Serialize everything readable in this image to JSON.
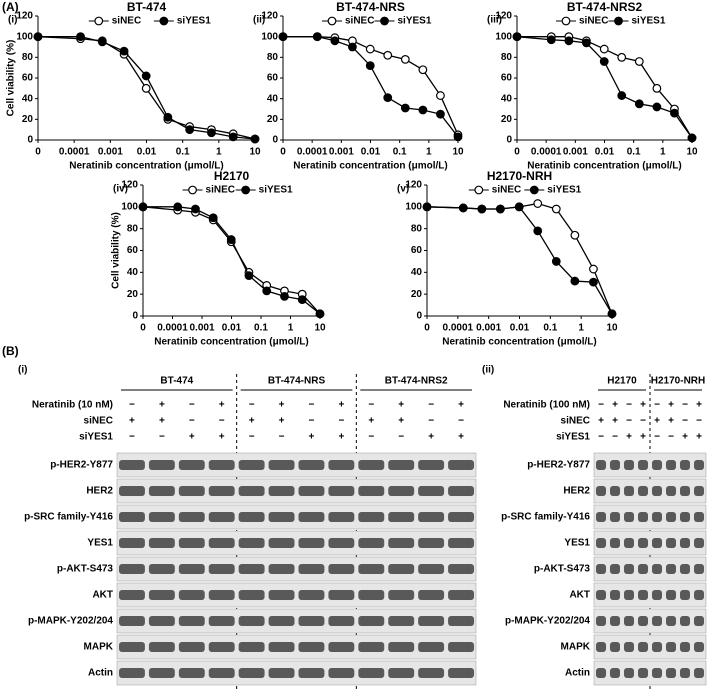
{
  "figure_labels": {
    "a": "(A)",
    "b": "(B)"
  },
  "chart_data": [
    {
      "type": "line",
      "panel": "(i)",
      "title": "BT-474",
      "ylabel": "Cell viability (%)",
      "xlabel": "Neratinib concentration (μmol/L)",
      "x": [
        0,
        0.00015,
        0.0006,
        0.0024,
        0.0098,
        0.039,
        0.156,
        0.625,
        2.5,
        10
      ],
      "xscale": "log",
      "xlim": [
        0,
        10
      ],
      "xticks": [
        0,
        0.0001,
        0.001,
        0.01,
        0.1,
        1,
        10
      ],
      "ylim": [
        0,
        120
      ],
      "yticks": [
        0,
        20,
        40,
        60,
        80,
        100,
        120
      ],
      "legend": "top",
      "series": [
        {
          "name": "siNEC",
          "color": "#000000",
          "marker": "open",
          "values": [
            100,
            98,
            96,
            83,
            50,
            20,
            13,
            10,
            6,
            1
          ]
        },
        {
          "name": "siYES1",
          "color": "#000000",
          "marker": "filled",
          "values": [
            100,
            100,
            95,
            86,
            62,
            22,
            10,
            7,
            3,
            1
          ]
        }
      ]
    },
    {
      "type": "line",
      "panel": "(ii)",
      "title": "BT-474-NRS",
      "xlabel": "Neratinib concentration (μmol/L)",
      "x": [
        0,
        0.00015,
        0.0006,
        0.0024,
        0.0098,
        0.039,
        0.156,
        0.625,
        2.5,
        10
      ],
      "xscale": "log",
      "xlim": [
        0,
        10
      ],
      "xticks": [
        0,
        0.0001,
        0.001,
        0.01,
        0.1,
        1,
        10
      ],
      "ylim": [
        0,
        120
      ],
      "yticks": [
        0,
        20,
        40,
        60,
        80,
        100,
        120
      ],
      "legend": "top",
      "series": [
        {
          "name": "siNEC",
          "color": "#000000",
          "marker": "open",
          "values": [
            100,
            100,
            99,
            96,
            88,
            82,
            78,
            68,
            43,
            5
          ]
        },
        {
          "name": "siYES1",
          "color": "#000000",
          "marker": "filled",
          "values": [
            100,
            100,
            96,
            90,
            72,
            41,
            31,
            29,
            25,
            3
          ]
        }
      ]
    },
    {
      "type": "line",
      "panel": "(iii)",
      "title": "BT-474-NRS2",
      "xlabel": "Neratinib concentration (μmol/L)",
      "x": [
        0,
        0.00015,
        0.0006,
        0.0024,
        0.0098,
        0.039,
        0.156,
        0.625,
        2.5,
        10
      ],
      "xscale": "log",
      "xlim": [
        0,
        10
      ],
      "xticks": [
        0,
        0.0001,
        0.001,
        0.01,
        0.1,
        1,
        10
      ],
      "ylim": [
        0,
        120
      ],
      "yticks": [
        0,
        20,
        40,
        60,
        80,
        100,
        120
      ],
      "legend": "top",
      "series": [
        {
          "name": "siNEC",
          "color": "#000000",
          "marker": "open",
          "values": [
            100,
            100,
            100,
            96,
            88,
            80,
            76,
            50,
            30,
            2
          ]
        },
        {
          "name": "siYES1",
          "color": "#000000",
          "marker": "filled",
          "values": [
            100,
            97,
            96,
            94,
            76,
            43,
            35,
            32,
            26,
            2
          ]
        }
      ]
    },
    {
      "type": "line",
      "panel": "(iv)",
      "title": "H2170",
      "ylabel": "Cell viability (%)",
      "xlabel": "Neratinib concentration (μmol/L)",
      "x": [
        0,
        0.00015,
        0.0006,
        0.0024,
        0.0098,
        0.039,
        0.156,
        0.625,
        2.5,
        10
      ],
      "xscale": "log",
      "xlim": [
        0,
        10
      ],
      "xticks": [
        0,
        0.0001,
        0.001,
        0.01,
        0.1,
        1,
        10
      ],
      "ylim": [
        0,
        120
      ],
      "yticks": [
        0,
        20,
        40,
        60,
        80,
        100,
        120
      ],
      "legend": "top",
      "series": [
        {
          "name": "siNEC",
          "color": "#000000",
          "marker": "open",
          "values": [
            100,
            97,
            95,
            88,
            68,
            40,
            28,
            23,
            20,
            2
          ]
        },
        {
          "name": "siYES1",
          "color": "#000000",
          "marker": "filled",
          "values": [
            100,
            100,
            98,
            90,
            70,
            37,
            23,
            18,
            15,
            2
          ]
        }
      ]
    },
    {
      "type": "line",
      "panel": "(v)",
      "title": "H2170-NRH",
      "xlabel": "Neratinib concentration (μmol/L)",
      "x": [
        0,
        0.00015,
        0.0006,
        0.0024,
        0.0098,
        0.039,
        0.156,
        0.625,
        2.5,
        10
      ],
      "xscale": "log",
      "xlim": [
        0,
        10
      ],
      "xticks": [
        0,
        0.0001,
        0.001,
        0.01,
        0.1,
        1,
        10
      ],
      "ylim": [
        0,
        120
      ],
      "yticks": [
        0,
        20,
        40,
        60,
        80,
        100,
        120
      ],
      "legend": "top",
      "series": [
        {
          "name": "siNEC",
          "color": "#000000",
          "marker": "open",
          "values": [
            100,
            99,
            98,
            98,
            100,
            103,
            98,
            74,
            43,
            2
          ]
        },
        {
          "name": "siYES1",
          "color": "#000000",
          "marker": "filled",
          "values": [
            100,
            99,
            98,
            98,
            100,
            78,
            50,
            32,
            31,
            2
          ]
        }
      ]
    }
  ],
  "blots": [
    {
      "panel": "(i)",
      "groups": [
        "BT-474",
        "BT-474-NRS",
        "BT-474-NRS2"
      ],
      "conditions": [
        {
          "name": "Neratinib (10 nM)",
          "signs": [
            "−",
            "+",
            "−",
            "+",
            "−",
            "+",
            "−",
            "+",
            "−",
            "+",
            "−",
            "+"
          ]
        },
        {
          "name": "siNEC",
          "signs": [
            "+",
            "+",
            "−",
            "−",
            "+",
            "+",
            "−",
            "−",
            "+",
            "+",
            "−",
            "−"
          ]
        },
        {
          "name": "siYES1",
          "signs": [
            "−",
            "−",
            "+",
            "+",
            "−",
            "−",
            "+",
            "+",
            "−",
            "−",
            "+",
            "+"
          ]
        }
      ],
      "rows": [
        "p-HER2-Y877",
        "HER2",
        "p-SRC family-Y416",
        "YES1",
        "p-AKT-S473",
        "AKT",
        "p-MAPK-Y202/204",
        "MAPK",
        "Actin"
      ]
    },
    {
      "panel": "(ii)",
      "groups": [
        "H2170",
        "H2170-NRH"
      ],
      "conditions": [
        {
          "name": "Neratinib (100 nM)",
          "signs": [
            "−",
            "+",
            "−",
            "+",
            "−",
            "+",
            "−",
            "+"
          ]
        },
        {
          "name": "siNEC",
          "signs": [
            "+",
            "+",
            "−",
            "−",
            "+",
            "+",
            "−",
            "−"
          ]
        },
        {
          "name": "siYES1",
          "signs": [
            "−",
            "−",
            "+",
            "+",
            "−",
            "−",
            "+",
            "+"
          ]
        }
      ],
      "rows": [
        "p-HER2-Y877",
        "HER2",
        "p-SRC family-Y416",
        "YES1",
        "p-AKT-S473",
        "AKT",
        "p-MAPK-Y202/204",
        "MAPK",
        "Actin"
      ]
    }
  ]
}
